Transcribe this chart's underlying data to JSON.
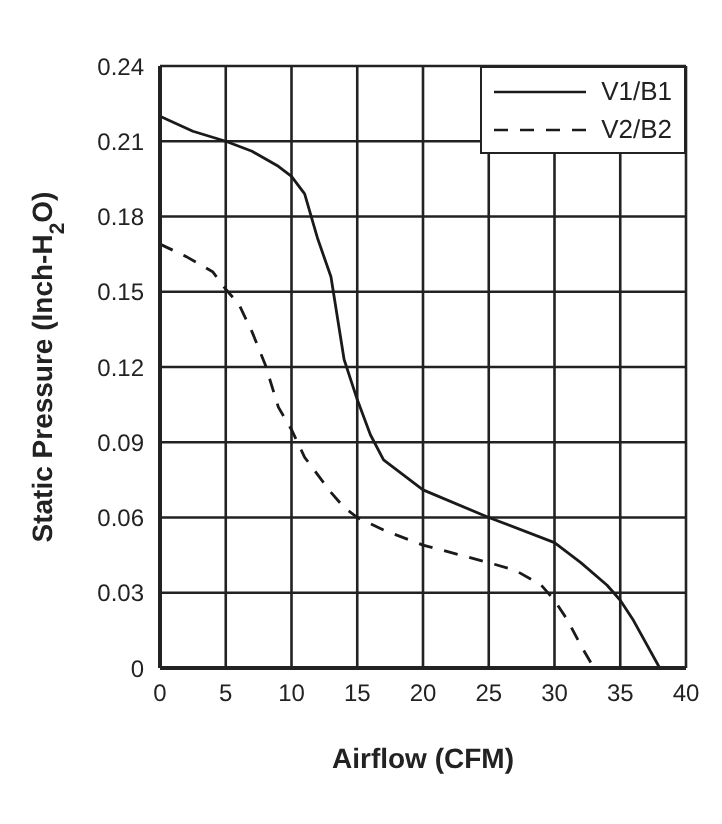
{
  "chart_data": {
    "type": "line",
    "xlabel": "Airflow (CFM)",
    "ylabel": "Static Pressure (Inch-H$_{2}$O)",
    "xlim": [
      0,
      40
    ],
    "xticks": [
      0,
      5,
      10,
      15,
      20,
      25,
      30,
      35,
      40
    ],
    "ylim": [
      0,
      0.24
    ],
    "yticks": [
      0,
      0.03,
      0.06,
      0.09,
      0.12,
      0.15,
      0.18,
      0.21,
      0.24
    ],
    "grid": true,
    "legend": "top right",
    "marker": "none",
    "series": [
      {
        "name": "V1/B1",
        "color": "#1a1a1a",
        "line_style": "solid",
        "x": [
          0,
          2.5,
          5,
          7,
          8,
          9,
          10,
          11,
          12,
          13,
          14,
          15,
          16,
          17,
          20,
          25,
          30,
          32,
          34,
          35,
          36,
          38
        ],
        "values": [
          0.22,
          0.214,
          0.21,
          0.206,
          0.203,
          0.2,
          0.196,
          0.189,
          0.171,
          0.156,
          0.123,
          0.107,
          0.093,
          0.083,
          0.071,
          0.06,
          0.05,
          0.042,
          0.033,
          0.027,
          0.019,
          0
        ]
      },
      {
        "name": "V2/B2",
        "color": "#1a1a1a",
        "line_style": "dashed",
        "x": [
          0,
          2,
          4,
          5,
          6,
          7,
          8,
          9,
          10,
          11,
          12,
          13,
          14,
          15,
          17,
          20,
          25,
          27,
          29,
          30,
          31,
          32,
          33
        ],
        "values": [
          0.169,
          0.164,
          0.158,
          0.151,
          0.145,
          0.134,
          0.121,
          0.104,
          0.095,
          0.084,
          0.077,
          0.07,
          0.064,
          0.06,
          0.055,
          0.049,
          0.042,
          0.039,
          0.033,
          0.027,
          0.019,
          0.009,
          0
        ]
      }
    ]
  }
}
